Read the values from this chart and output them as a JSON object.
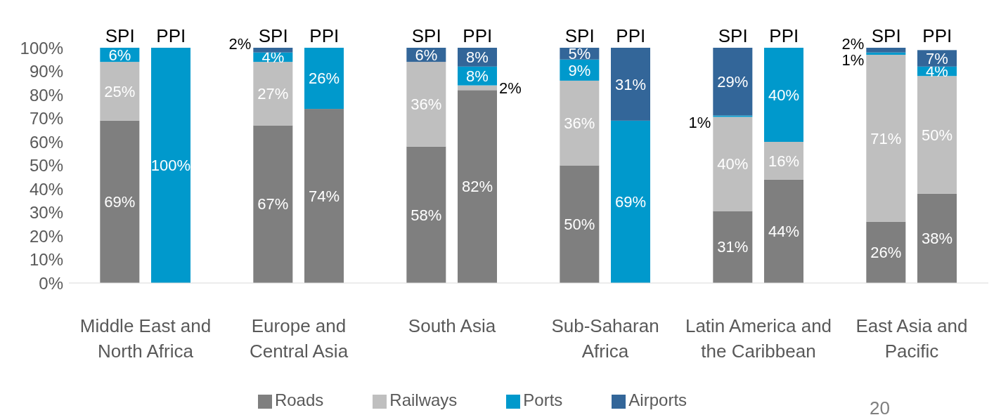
{
  "chart_data": {
    "type": "bar",
    "stacked": true,
    "categories": [
      "SPI",
      "PPI",
      "SPI",
      "PPI",
      "SPI",
      "PPI",
      "SPI",
      "PPI",
      "SPI",
      "PPI",
      "SPI",
      "PPI"
    ],
    "series": [
      {
        "name": "Roads",
        "color": "#7f7f7f",
        "values": [
          69,
          0,
          67,
          74,
          58,
          82,
          50,
          0,
          30.6,
          44,
          26,
          38
        ],
        "value_labels": [
          "69%",
          null,
          "67%",
          "74%",
          "58%",
          "82%",
          "50%",
          null,
          "31%",
          "44%",
          "26%",
          "38%"
        ]
      },
      {
        "name": "Railways",
        "color": "#bfbfbf",
        "values": [
          25,
          0,
          27,
          0,
          36,
          2,
          36,
          0,
          40,
          16,
          71,
          50
        ],
        "value_labels": [
          "25%",
          null,
          "27%",
          null,
          "36%",
          "2%",
          "36%",
          null,
          "40%",
          "16%",
          "71%",
          "50%"
        ]
      },
      {
        "name": "Ports",
        "color": "#0099cc",
        "values": [
          6,
          100,
          4,
          26,
          0,
          8,
          9,
          69,
          0.6,
          40,
          1,
          4
        ],
        "value_labels": [
          "6%",
          "100%",
          "4%",
          "26%",
          null,
          "8%",
          "9%",
          "69%",
          "1%",
          "40%",
          "1%",
          "4%"
        ]
      },
      {
        "name": "Airports",
        "color": "#336699",
        "values": [
          0,
          0,
          2,
          0,
          6,
          8,
          5,
          31,
          28.8,
          0,
          2,
          7
        ],
        "value_labels": [
          null,
          null,
          "2%",
          null,
          "6%",
          "8%",
          "5%",
          "31%",
          "29%",
          null,
          "2%",
          "7%"
        ]
      }
    ],
    "ylim": [
      0,
      100
    ],
    "yticks": [
      {
        "value": 0,
        "label": "0%"
      },
      {
        "value": 10,
        "label": "10%"
      },
      {
        "value": 20,
        "label": "20%"
      },
      {
        "value": 30,
        "label": "30%"
      },
      {
        "value": 40,
        "label": "40%"
      },
      {
        "value": 50,
        "label": "50%"
      },
      {
        "value": 60,
        "label": "60%"
      },
      {
        "value": 70,
        "label": "70%"
      },
      {
        "value": 80,
        "label": "80%"
      },
      {
        "value": 90,
        "label": "90%"
      },
      {
        "value": 100,
        "label": "100%"
      }
    ],
    "grid": false,
    "legend": "bottom",
    "annotations": [
      "Middle East and North Africa",
      "Europe and Central Asia",
      "South Asia",
      "Sub-Saharan Africa",
      "Latin America and the Caribbean",
      "East Asia and Pacific",
      "20"
    ]
  }
}
